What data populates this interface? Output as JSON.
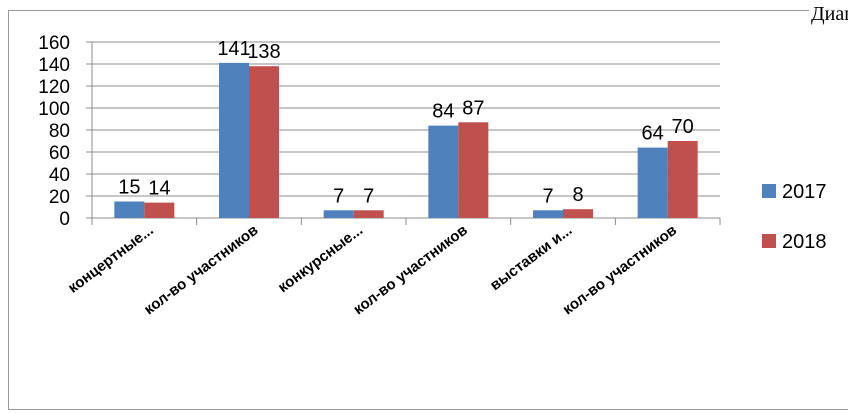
{
  "page_title": "Диаг",
  "chart_data": {
    "type": "bar",
    "categories": [
      "концертные...",
      "кол-во участников",
      "конкурсные...",
      "кол-во участников",
      "выставки и...",
      "кол-во участников"
    ],
    "series": [
      {
        "name": "2017",
        "values": [
          15,
          141,
          7,
          84,
          7,
          64
        ],
        "color": "#4f81bd"
      },
      {
        "name": "2018",
        "values": [
          14,
          138,
          7,
          87,
          8,
          70
        ],
        "color": "#c0504d"
      }
    ],
    "ylim": [
      0,
      160
    ],
    "yticks": [
      0,
      20,
      40,
      60,
      80,
      100,
      120,
      140,
      160
    ],
    "grid": true,
    "legend": "right",
    "xlabel": "",
    "ylabel": ""
  }
}
